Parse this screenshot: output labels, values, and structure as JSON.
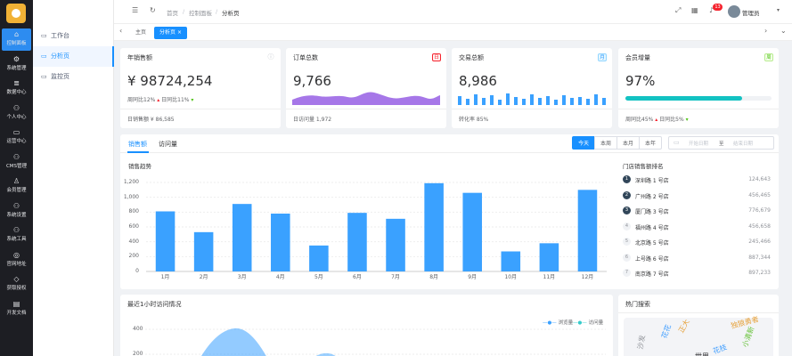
{
  "rail": [
    {
      "label": "控制面板",
      "icon": "home-icon",
      "active": true
    },
    {
      "label": "系统管理",
      "icon": "gear-icon"
    },
    {
      "label": "数据中心",
      "icon": "database-icon"
    },
    {
      "label": "个人中心",
      "icon": "people-icon"
    },
    {
      "label": "运营中心",
      "icon": "monitor-icon"
    },
    {
      "label": "CMS管理",
      "icon": "people-icon"
    },
    {
      "label": "会员管理",
      "icon": "user-icon"
    },
    {
      "label": "系统设置",
      "icon": "people-icon"
    },
    {
      "label": "系统工具",
      "icon": "people-icon"
    },
    {
      "label": "官网地址",
      "icon": "globe-icon"
    },
    {
      "label": "获取授权",
      "icon": "diamond-icon"
    },
    {
      "label": "开发文档",
      "icon": "document-icon"
    }
  ],
  "menu": [
    {
      "label": "工作台"
    },
    {
      "label": "分析页",
      "active": true
    },
    {
      "label": "监控页"
    }
  ],
  "header": {
    "breadcrumb": [
      "首页",
      "控制面板",
      "分析页"
    ],
    "badge": "13",
    "user": "管理员"
  },
  "tabs": [
    {
      "label": "主页"
    },
    {
      "label": "分析页",
      "active": true,
      "close": "×"
    }
  ],
  "cards": [
    {
      "title": "年销售额",
      "value": "¥ 98724,254",
      "line1a": "周同比12%",
      "line1b": "日同比11%",
      "footer": "日销售额 ¥ 86,585"
    },
    {
      "title": "订单总数",
      "tag": "日",
      "tag_color": "#f5222d",
      "value": "9,766",
      "footer": "日访问量 1,972"
    },
    {
      "title": "交易总额",
      "tag": "月",
      "tag_color": "#1890ff",
      "value": "8,986",
      "footer": "转化率 85%"
    },
    {
      "title": "会员增量",
      "tag": "周",
      "tag_color": "#52c41a",
      "value": "97%",
      "progress": 0.8,
      "line1a": "周同比45%",
      "line1b": "日同比5%"
    }
  ],
  "sales": {
    "tabs": [
      "销售额",
      "访问量"
    ],
    "periods": [
      "今天",
      "本周",
      "本月",
      "本年"
    ],
    "date_start": "开始日期",
    "date_sep": "至",
    "date_end": "结束日期",
    "ranking_title": "门店销售额排名",
    "ranking": [
      {
        "rank": "1",
        "name": "深圳路 1 号店",
        "value": "124,643"
      },
      {
        "rank": "2",
        "name": "广州路 2 号店",
        "value": "456,465"
      },
      {
        "rank": "3",
        "name": "厦门路 3 号店",
        "value": "776,679"
      },
      {
        "rank": "4",
        "name": "福州路 4 号店",
        "value": "456,658"
      },
      {
        "rank": "5",
        "name": "北京路 5 号店",
        "value": "245,466"
      },
      {
        "rank": "6",
        "name": "上号路 6 号店",
        "value": "887,344"
      },
      {
        "rank": "7",
        "name": "南京路 7 号店",
        "value": "897,233"
      }
    ]
  },
  "chart_data": {
    "type": "bar",
    "title": "销售趋势",
    "categories": [
      "1月",
      "2月",
      "3月",
      "4月",
      "5月",
      "6月",
      "7月",
      "8月",
      "9月",
      "10月",
      "11月",
      "12月"
    ],
    "values": [
      810,
      530,
      910,
      780,
      350,
      790,
      710,
      1190,
      1060,
      270,
      380,
      1100
    ],
    "ylim": [
      0,
      1200
    ],
    "yticks": [
      "0",
      "200",
      "400",
      "600",
      "800",
      "1,000",
      "1,200"
    ],
    "grid": true,
    "color": "#3aa1ff"
  },
  "visit": {
    "title": "最近1小时访问情况",
    "legend": [
      "浏览量",
      "访问量"
    ],
    "ytick_400": "400",
    "ytick_200": "200"
  },
  "hot": {
    "title": "热门搜索",
    "words": [
      {
        "t": "独狼勇者",
        "c": "#e6a23c"
      },
      {
        "t": "正大",
        "c": "#e6a23c"
      },
      {
        "t": "花花",
        "c": "#409eff"
      },
      {
        "t": "小清新",
        "c": "#67c23a"
      },
      {
        "t": "沙发",
        "c": "#909399"
      },
      {
        "t": "花枝",
        "c": "#409eff"
      },
      {
        "t": "世界",
        "c": "#303133"
      }
    ]
  }
}
